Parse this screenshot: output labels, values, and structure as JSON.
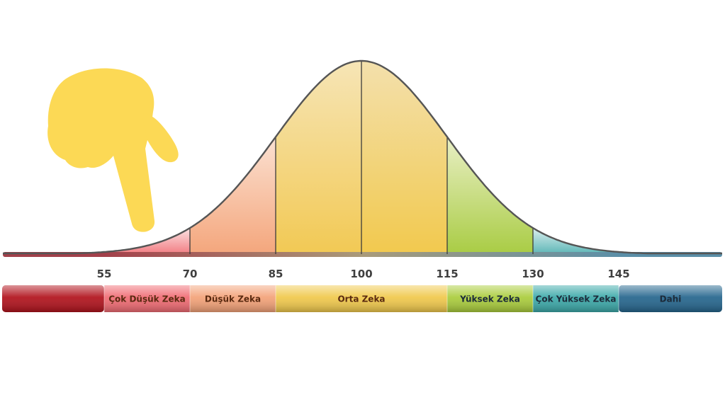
{
  "chart_data": {
    "type": "area",
    "x_ticks": [
      "55",
      "70",
      "85",
      "100",
      "115",
      "130",
      "145"
    ],
    "distribution": {
      "mean": 100,
      "sd": 15
    },
    "xlim": [
      40,
      165
    ],
    "grid": false,
    "segments": [
      {
        "from": 40,
        "to": 55,
        "label": "",
        "color": "#b0101a"
      },
      {
        "from": 55,
        "to": 70,
        "label": "Çok Düşük Zeka",
        "color": "#f06a72"
      },
      {
        "from": 70,
        "to": 85,
        "label": "Düşük Zeka",
        "color": "#f3a177"
      },
      {
        "from": 85,
        "to": 115,
        "label": "Orta Zeka",
        "color": "#f0c84a"
      },
      {
        "from": 115,
        "to": 130,
        "label": "Yüksek Zeka",
        "color": "#a9cc3a"
      },
      {
        "from": 130,
        "to": 145,
        "label": "Çok Yüksek Zeka",
        "color": "#3aa8a8"
      },
      {
        "from": 145,
        "to": 165,
        "label": "Dahi",
        "color": "#23648c"
      }
    ],
    "curve_fills": [
      {
        "from": 55,
        "to": 70,
        "top": "#fbe3e3",
        "bottom": "#f27c82"
      },
      {
        "from": 70,
        "to": 85,
        "top": "#fbe1d2",
        "bottom": "#f4a67c"
      },
      {
        "from": 85,
        "to": 100,
        "top": "#f6e5b6",
        "bottom": "#f2c954"
      },
      {
        "from": 100,
        "to": 115,
        "top": "#f3e0ac",
        "bottom": "#f2c94e"
      },
      {
        "from": 115,
        "to": 130,
        "top": "#e9efc5",
        "bottom": "#a9cc44"
      },
      {
        "from": 130,
        "to": 145,
        "top": "#dcefef",
        "bottom": "#5cb6b6"
      }
    ],
    "baseline_left_color": "#a3404a",
    "baseline_right_color": "#5b8fa8",
    "curve_color": "#555555"
  },
  "decoration": {
    "pointer_icon": "pointing-hand-icon",
    "pointer_color": "#fcd955"
  }
}
